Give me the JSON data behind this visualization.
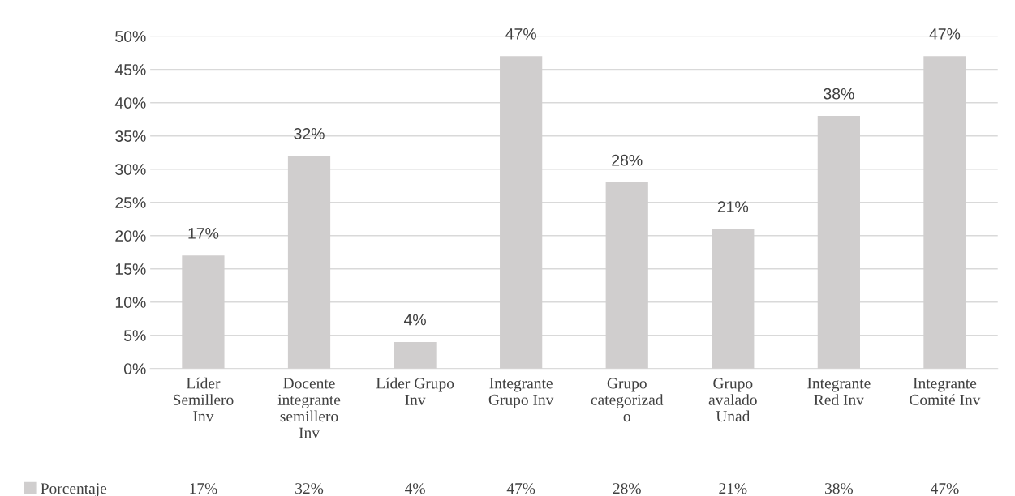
{
  "chart_data": {
    "type": "bar",
    "categories": [
      "Líder\nSemillero\nInv",
      "Docente\nintegrante\nsemillero\nInv",
      "Líder Grupo\nInv",
      "Integrante\nGrupo Inv",
      "Grupo\ncategorizad\no",
      "Grupo\navalado\nUnad",
      "Integrante\nRed Inv",
      "Integrante\nComité Inv"
    ],
    "series": [
      {
        "name": "Porcentaje",
        "color": "#d0cece",
        "values": [
          17,
          32,
          4,
          47,
          28,
          21,
          38,
          47
        ],
        "value_labels": [
          "17%",
          "32%",
          "4%",
          "47%",
          "28%",
          "21%",
          "38%",
          "47%"
        ]
      }
    ],
    "ylim": [
      0,
      50
    ],
    "yticks": [
      {
        "value": 0,
        "label": "0%"
      },
      {
        "value": 5,
        "label": "5%"
      },
      {
        "value": 10,
        "label": "10%"
      },
      {
        "value": 15,
        "label": "15%"
      },
      {
        "value": 20,
        "label": "20%"
      },
      {
        "value": 25,
        "label": "25%"
      },
      {
        "value": 30,
        "label": "30%"
      },
      {
        "value": 35,
        "label": "35%"
      },
      {
        "value": 40,
        "label": "40%"
      },
      {
        "value": 45,
        "label": "45%"
      },
      {
        "value": 50,
        "label": "50%"
      }
    ],
    "grid": "y",
    "legend": "bottom left"
  }
}
